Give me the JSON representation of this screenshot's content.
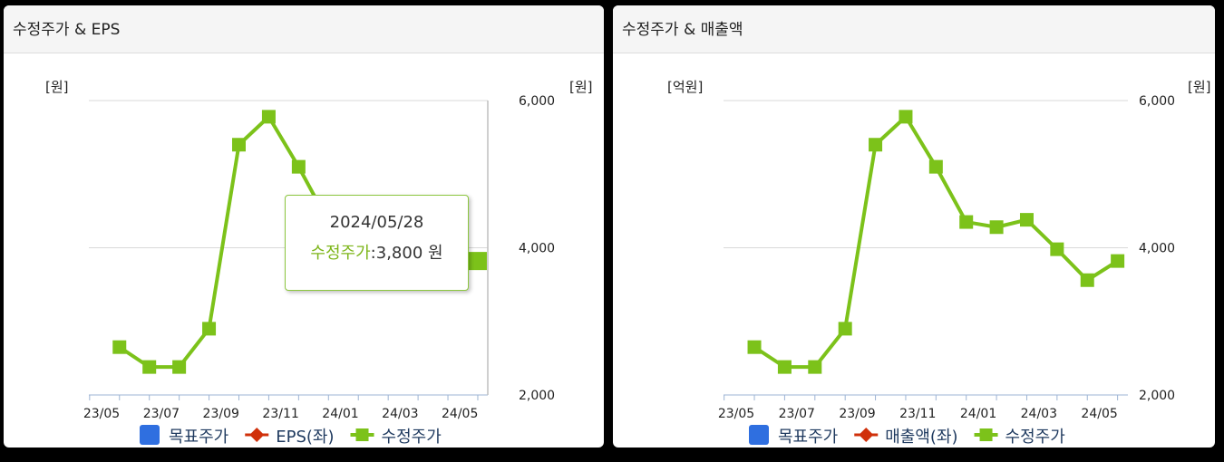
{
  "panels": [
    {
      "title": "수정주가 & EPS",
      "left_unit": "[원]",
      "right_unit": "[원]",
      "legend": [
        {
          "label": "목표주가",
          "icon": "square",
          "color": "#2f6fe0"
        },
        {
          "label": "EPS(좌)",
          "icon": "diamond-line",
          "color": "#d0300a"
        },
        {
          "label": "수정주가",
          "icon": "square-line",
          "color": "#7cc21a"
        }
      ]
    },
    {
      "title": "수정주가 & 매출액",
      "left_unit": "[억원]",
      "right_unit": "[원]",
      "legend": [
        {
          "label": "목표주가",
          "icon": "square",
          "color": "#2f6fe0"
        },
        {
          "label": "매출액(좌)",
          "icon": "diamond-line",
          "color": "#d0300a"
        },
        {
          "label": "수정주가",
          "icon": "square-line",
          "color": "#7cc21a"
        }
      ]
    }
  ],
  "tooltip": {
    "date": "2024/05/28",
    "series": "수정주가",
    "separator": ":",
    "value_text": "3,800 원"
  },
  "chart_data": [
    {
      "type": "line",
      "title": "수정주가 & EPS",
      "categories": [
        "23/05",
        "23/07",
        "23/09",
        "23/11",
        "24/01",
        "24/03",
        "24/05"
      ],
      "right_axis": {
        "ticks": [
          "2,000",
          "4,000",
          "6,000"
        ],
        "ylim": [
          2000,
          6000
        ]
      },
      "series": [
        {
          "name": "수정주가",
          "color": "#7cc21a",
          "points": [
            [
              0.3,
              2650
            ],
            [
              0.8,
              2380
            ],
            [
              1.3,
              2380
            ],
            [
              1.8,
              2900
            ],
            [
              2.3,
              5400
            ],
            [
              2.8,
              5780
            ],
            [
              3.3,
              5100
            ],
            [
              3.8,
              4350
            ],
            [
              4.3,
              4280
            ],
            [
              4.8,
              4380
            ],
            [
              5.3,
              3980
            ],
            [
              5.8,
              3560
            ],
            [
              6.3,
              3820
            ]
          ]
        }
      ]
    },
    {
      "type": "line",
      "title": "수정주가 & 매출액",
      "categories": [
        "23/05",
        "23/07",
        "23/09",
        "23/11",
        "24/01",
        "24/03",
        "24/05"
      ],
      "right_axis": {
        "ticks": [
          "2,000",
          "4,000",
          "6,000"
        ],
        "ylim": [
          2000,
          6000
        ]
      },
      "series": [
        {
          "name": "수정주가",
          "color": "#7cc21a",
          "points": [
            [
              0.3,
              2650
            ],
            [
              0.8,
              2380
            ],
            [
              1.3,
              2380
            ],
            [
              1.8,
              2900
            ],
            [
              2.3,
              5400
            ],
            [
              2.8,
              5780
            ],
            [
              3.3,
              5100
            ],
            [
              3.8,
              4350
            ],
            [
              4.3,
              4280
            ],
            [
              4.8,
              4380
            ],
            [
              5.3,
              3980
            ],
            [
              5.8,
              3560
            ],
            [
              6.3,
              3820
            ]
          ]
        }
      ]
    }
  ]
}
